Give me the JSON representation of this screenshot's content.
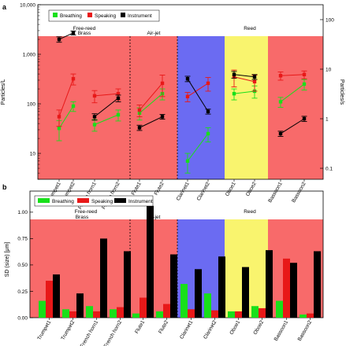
{
  "colors": {
    "breathing": "#18e01a",
    "speaking": "#e81818",
    "instrument": "#000000",
    "brass_bg": "#f86a6a",
    "reed_blue": "#6b6bf2",
    "reed_yellow": "#f9f46e"
  },
  "panel_a": {
    "panel_label": "a",
    "legend": [
      "Breathing",
      "Speaking",
      "Instrument"
    ],
    "ylabel_left": "Particles/L",
    "ylabel_right": "Particles/s",
    "group_labels": {
      "brass": "Brass",
      "free_reed": "Free-reed",
      "air_jet": "Air-jet",
      "reed": "Reed"
    }
  },
  "panel_b": {
    "panel_label": "b",
    "legend": [
      "Breathing",
      "Speaking",
      "Instrument"
    ],
    "ylabel": "SD (size) [μm]",
    "group_labels": {
      "brass": "Brass",
      "free_reed": "Free-reed",
      "air_jet": "Air-jet",
      "reed": "Reed"
    }
  },
  "chart_data": [
    {
      "type": "line",
      "yscale": "log",
      "ylim": [
        3,
        10000
      ],
      "ylim_right": [
        0.06,
        200
      ],
      "yticks_left": [
        "10",
        "100",
        "1,000",
        "10,000"
      ],
      "yticks_right": [
        "0.1",
        "1",
        "10",
        "100"
      ],
      "ylabel": "Particles/L",
      "ylabel_right": "Particles/s",
      "categories": [
        "Trumpet1",
        "Trumpet2",
        "French horn1",
        "French horn2",
        "Flute1",
        "Flute2",
        "Clarinet1",
        "Clarinet2",
        "Oboe1",
        "Oboe2",
        "Bassoon1",
        "Bassoon2"
      ],
      "pairs": [
        [
          0,
          1
        ],
        [
          2,
          3
        ],
        [
          4,
          5
        ],
        [
          6,
          7
        ],
        [
          8,
          9
        ],
        [
          10,
          11
        ]
      ],
      "series": [
        {
          "name": "Breathing",
          "values": [
            32,
            90,
            38,
            60,
            65,
            160,
            7,
            25,
            160,
            180,
            110,
            250
          ],
          "err": [
            14,
            20,
            10,
            15,
            18,
            40,
            3,
            8,
            40,
            50,
            25,
            60
          ]
        },
        {
          "name": "Speaking",
          "values": [
            55,
            320,
            145,
            160,
            75,
            260,
            140,
            260,
            350,
            280,
            370,
            390
          ],
          "err": [
            20,
            80,
            40,
            40,
            20,
            120,
            30,
            80,
            130,
            100,
            70,
            70
          ]
        },
        {
          "name": "Instrument",
          "values": [
            2000,
            2700,
            55,
            130,
            33,
            55,
            320,
            70,
            390,
            350,
            25,
            50
          ],
          "err": [
            250,
            250,
            8,
            20,
            4,
            6,
            40,
            8,
            60,
            40,
            3,
            6
          ]
        }
      ],
      "legend": "top-left",
      "grid": false
    },
    {
      "type": "bar",
      "ylim": [
        0,
        1.2
      ],
      "yticks": [
        "0.00",
        "0.25",
        "0.50",
        "0.75",
        "1.00"
      ],
      "ylabel": "SD (size) [μm]",
      "categories": [
        "Trumpet1",
        "Trumpet2",
        "French horn1",
        "French horn2",
        "Flute1",
        "Flute2",
        "Clarinet1",
        "Clarinet2",
        "Oboe1",
        "Oboe2",
        "Bassoon1",
        "Bassoon2"
      ],
      "series": [
        {
          "name": "Breathing",
          "values": [
            0.16,
            0.08,
            0.11,
            0.08,
            0.04,
            0.06,
            0.32,
            0.23,
            0.06,
            0.11,
            0.16,
            0.03
          ]
        },
        {
          "name": "Speaking",
          "values": [
            0.35,
            0.06,
            0.06,
            0.1,
            0.19,
            0.13,
            0.08,
            0.07,
            0.06,
            0.09,
            0.56,
            0.04
          ]
        },
        {
          "name": "Instrument",
          "values": [
            0.41,
            0.23,
            0.75,
            0.63,
            1.06,
            0.6,
            0.46,
            0.58,
            0.48,
            0.64,
            0.52,
            0.63
          ]
        }
      ],
      "legend": "top-left",
      "grid": false
    }
  ]
}
